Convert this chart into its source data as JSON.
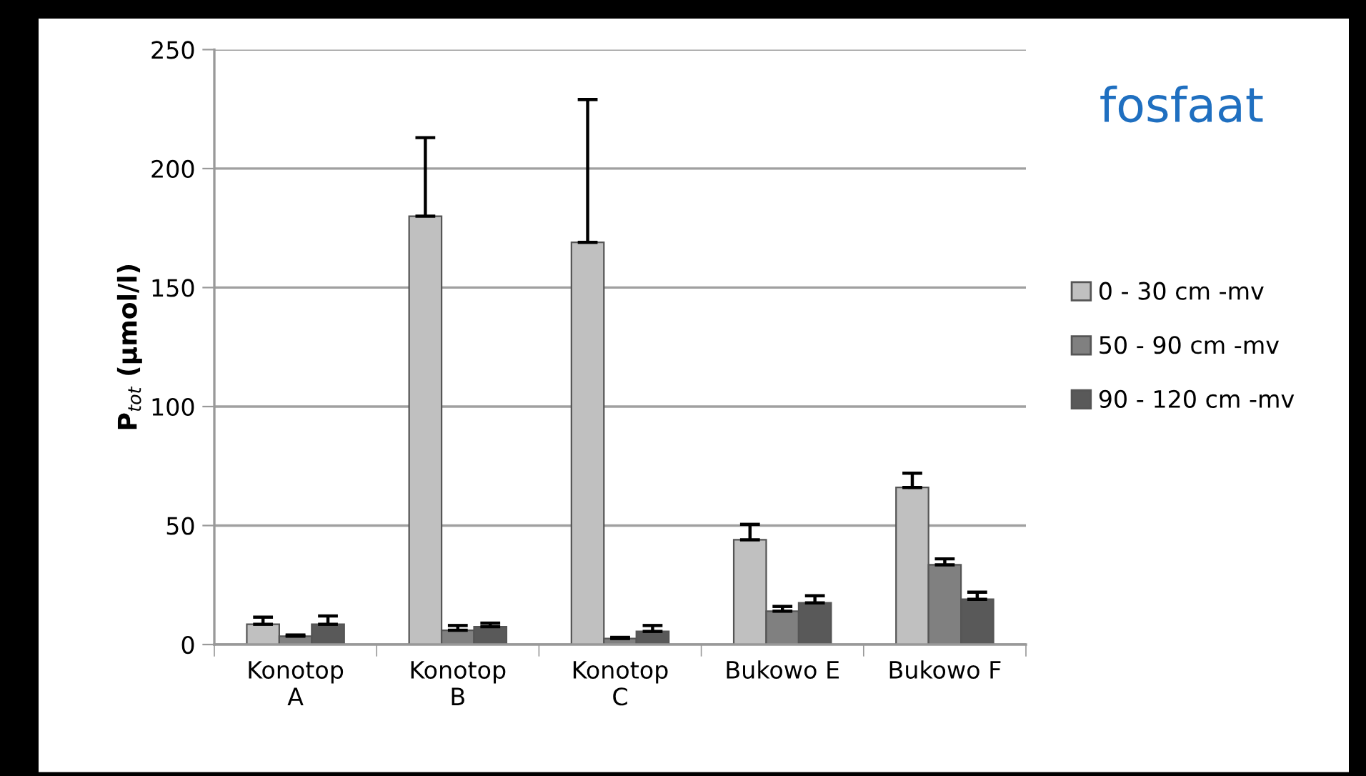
{
  "chart_data": {
    "type": "bar",
    "title": "fosfaat",
    "ylabel": "P$_{tot}$ (µmol/l)",
    "categories": [
      "Konotop\nA",
      "Konotop\nB",
      "Konotop\nC",
      "Bukowo E",
      "Bukowo F"
    ],
    "series": [
      {
        "name": "0 - 30 cm -mv",
        "color": "#c0c0c0",
        "values": [
          8.5,
          180,
          169,
          44,
          66
        ],
        "errors": [
          [
            8.5,
            11.5
          ],
          [
            180,
            213
          ],
          [
            169,
            229
          ],
          [
            44,
            50.5
          ],
          [
            66,
            72
          ]
        ]
      },
      {
        "name": "50 - 90 cm -mv",
        "color": "#808080",
        "values": [
          3.5,
          6,
          2.5,
          14,
          33.5
        ],
        "errors": [
          [
            3.5,
            4
          ],
          [
            6,
            8
          ],
          [
            2.5,
            3
          ],
          [
            14,
            16
          ],
          [
            33.5,
            36
          ]
        ]
      },
      {
        "name": "90 - 120 cm -mv",
        "color": "#595959",
        "values": [
          8.5,
          7.5,
          5.5,
          17.5,
          19
        ],
        "errors": [
          [
            8.5,
            12
          ],
          [
            7.5,
            9
          ],
          [
            5.5,
            8
          ],
          [
            17.5,
            20.5
          ],
          [
            19,
            22
          ]
        ]
      }
    ],
    "ylim": [
      0,
      250
    ],
    "yticks": [
      0,
      50,
      100,
      150,
      200,
      250
    ],
    "grid": "y",
    "legend": "right"
  }
}
